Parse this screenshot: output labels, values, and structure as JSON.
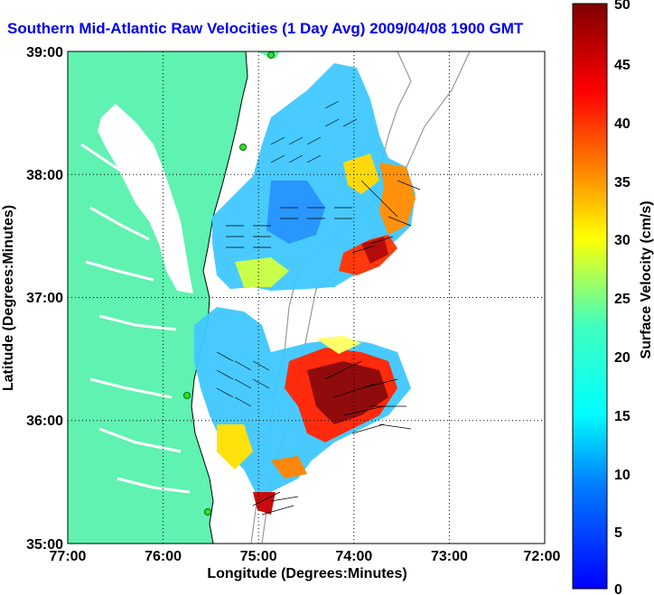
{
  "title": "Southern Mid-Atlantic Raw Velocities (1 Day Avg) 2009/04/08 1900 GMT",
  "map": {
    "xlabel": "Longitude (Degrees:Minutes)",
    "ylabel": "Latitude (Degrees:Minutes)",
    "x_ticks": [
      "77:00",
      "76:00",
      "75:00",
      "74:00",
      "73:00",
      "72:00"
    ],
    "y_ticks": [
      "39:00",
      "38:00",
      "37:00",
      "36:00",
      "35:00"
    ],
    "land_color": "#5ff2b0",
    "grid": "dotted"
  },
  "colorbar": {
    "label": "Surface Velocity (cm/s)",
    "ticks": [
      "50",
      "45",
      "40",
      "35",
      "30",
      "25",
      "20",
      "15",
      "10",
      "5",
      "0"
    ],
    "range": [
      0,
      50
    ],
    "colormap": "jet"
  },
  "chart_data": {
    "type": "heatmap",
    "title": "Southern Mid-Atlantic Raw Velocities (1 Day Avg) 2009/04/08 1900 GMT",
    "xlabel": "Longitude (Degrees:Minutes)",
    "ylabel": "Latitude (Degrees:Minutes)",
    "xlim": [
      -77,
      -72
    ],
    "ylim": [
      35,
      39
    ],
    "color_range": [
      0,
      50
    ],
    "color_label": "Surface Velocity (cm/s)"
  }
}
